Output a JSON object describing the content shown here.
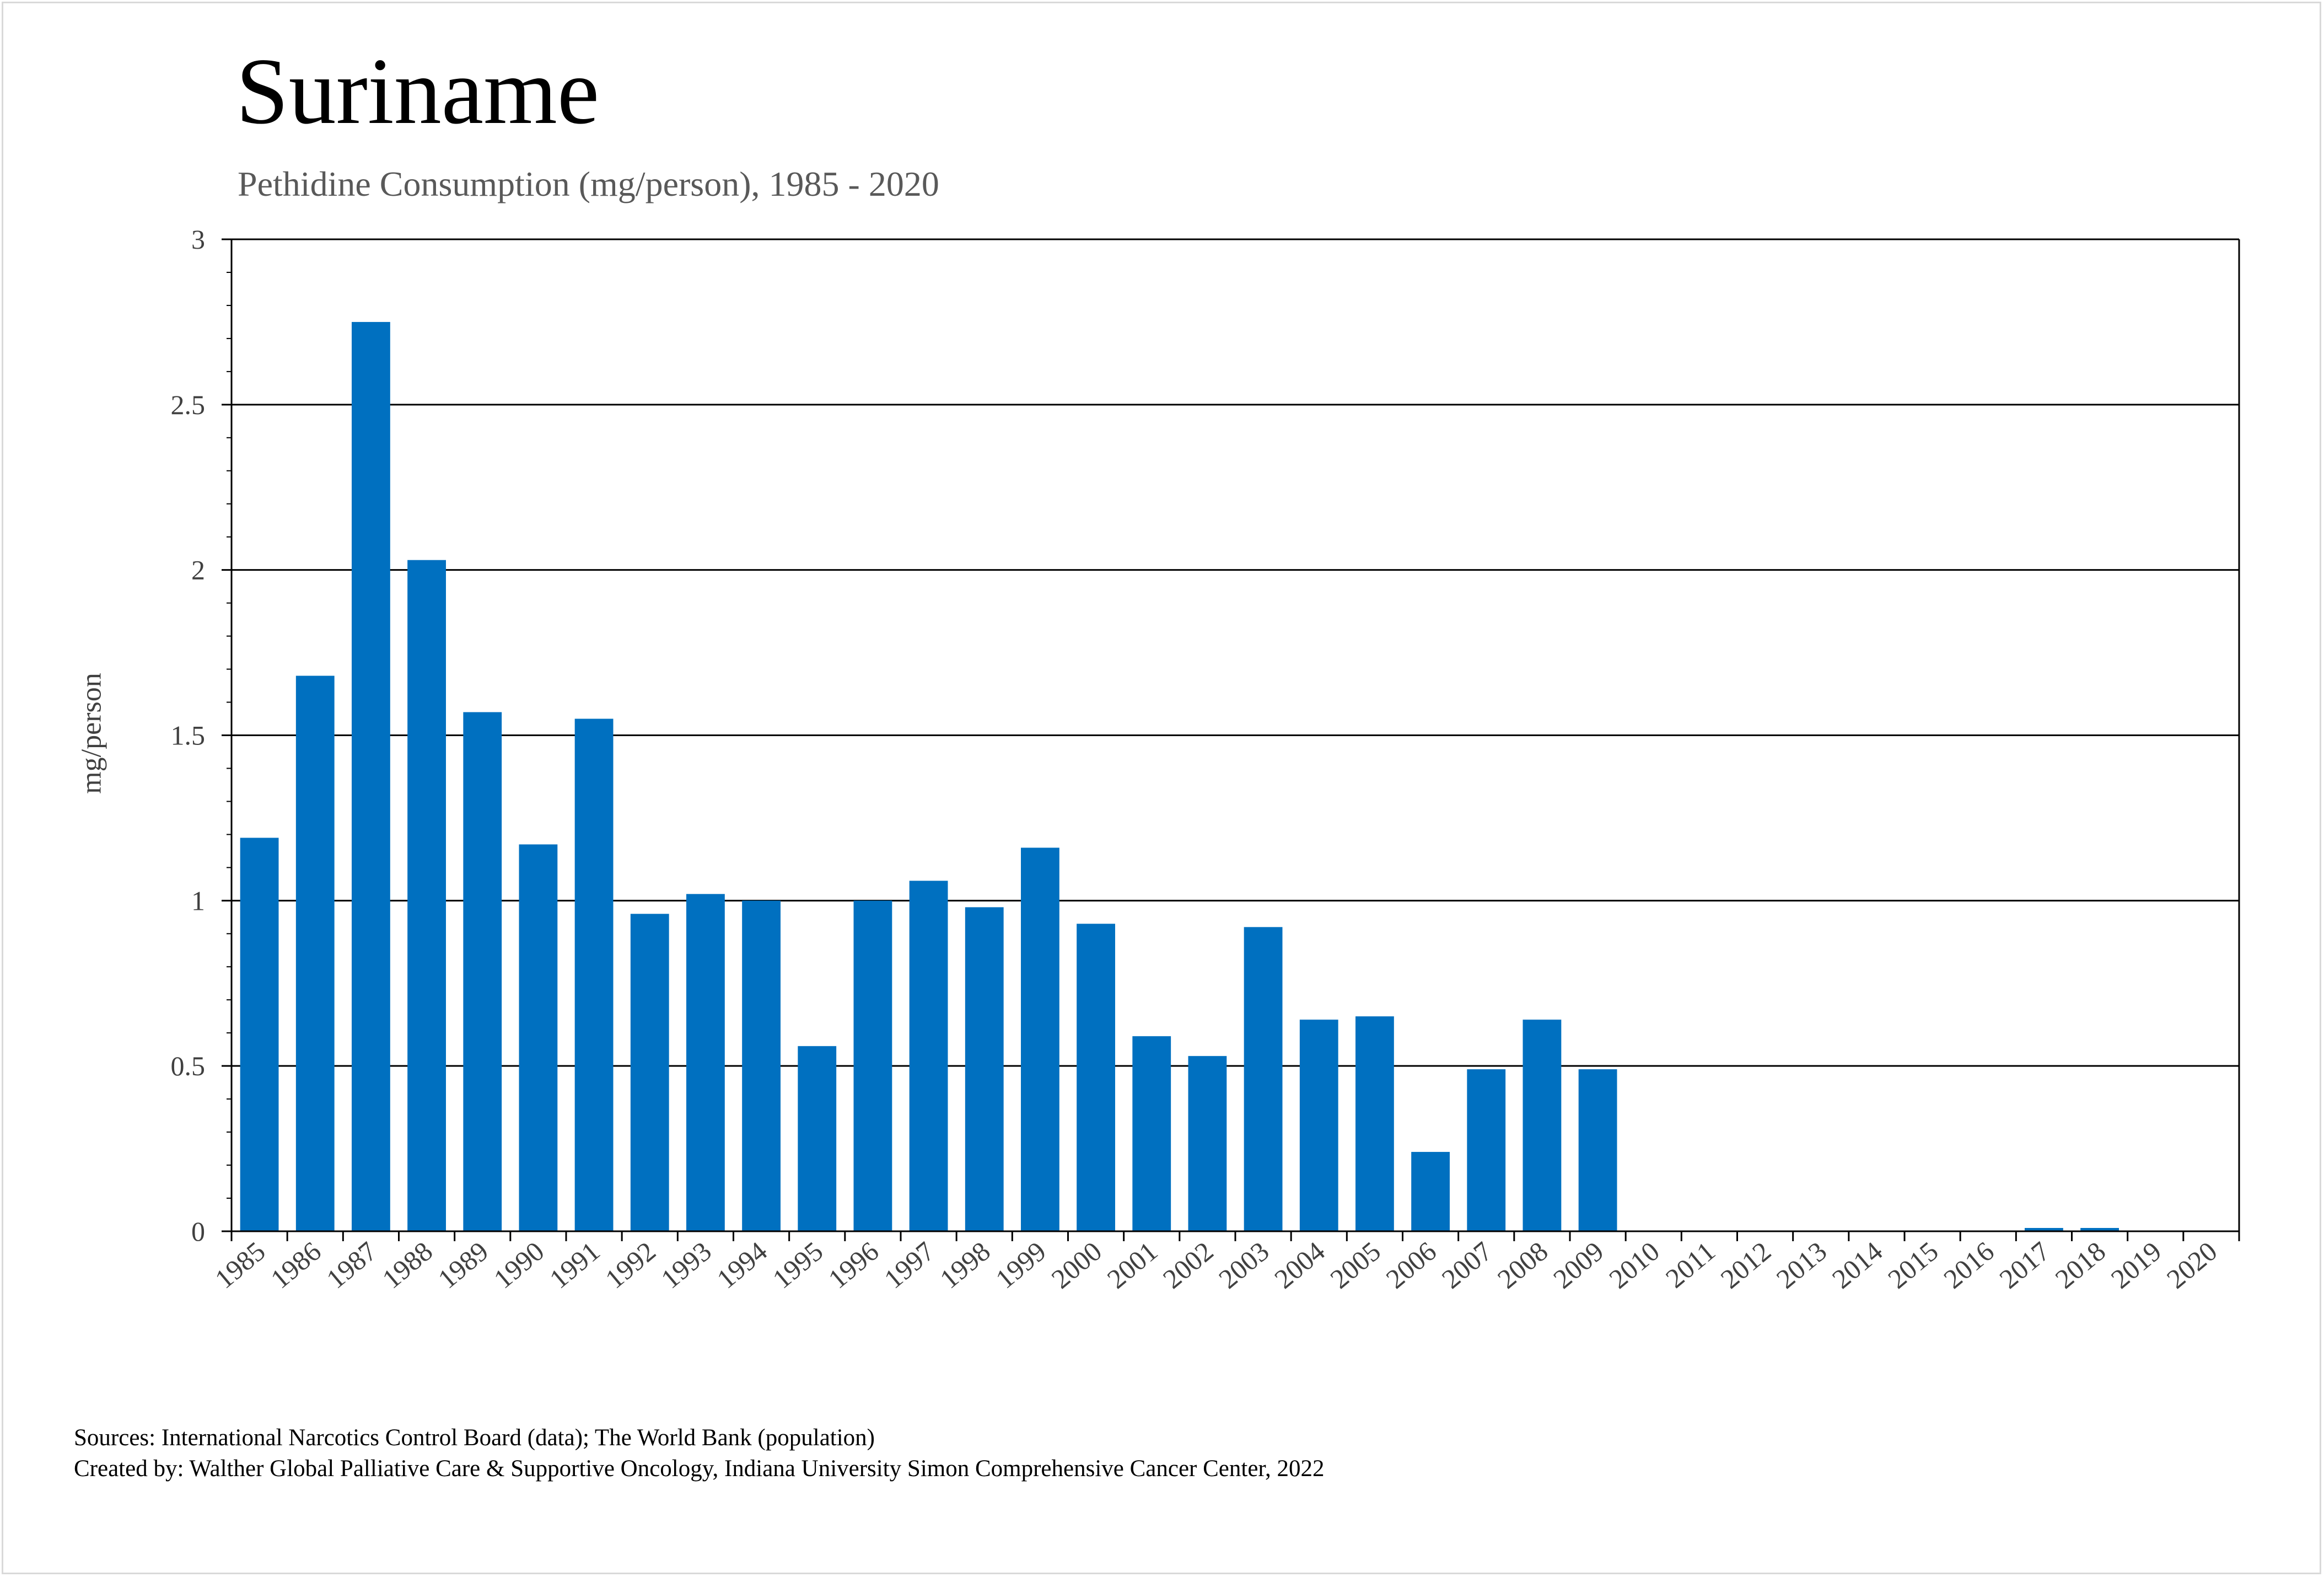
{
  "chart_data": {
    "type": "bar",
    "title": "Suriname",
    "subtitle": "Pethidine Consumption (mg/person), 1985 - 2020",
    "xlabel": "",
    "ylabel": "mg/person",
    "ylim": [
      0,
      3
    ],
    "yticks": [
      "0",
      "0.5",
      "1",
      "1.5",
      "2",
      "2.5",
      "3"
    ],
    "grid": true,
    "legend": "none",
    "bar_color": "#0070C0",
    "categories": [
      "1985",
      "1986",
      "1987",
      "1988",
      "1989",
      "1990",
      "1991",
      "1992",
      "1993",
      "1994",
      "1995",
      "1996",
      "1997",
      "1998",
      "1999",
      "2000",
      "2001",
      "2002",
      "2003",
      "2004",
      "2005",
      "2006",
      "2007",
      "2008",
      "2009",
      "2010",
      "2011",
      "2012",
      "2013",
      "2014",
      "2015",
      "2016",
      "2017",
      "2018",
      "2019",
      "2020"
    ],
    "values": [
      1.19,
      1.68,
      2.75,
      2.03,
      1.57,
      1.17,
      1.55,
      0.96,
      1.02,
      1.0,
      0.56,
      1.0,
      1.06,
      0.98,
      1.16,
      0.93,
      0.59,
      0.53,
      0.92,
      0.64,
      0.65,
      0.24,
      0.49,
      0.64,
      0.49,
      0,
      0,
      0,
      0,
      0,
      0,
      0,
      0.01,
      0.01,
      0,
      0
    ]
  },
  "footer": {
    "sources": "Sources: International Narcotics Control Board (data); The World Bank (population)",
    "created_by": "Created by: Walther Global Palliative Care & Supportive Oncology, Indiana University Simon Comprehensive Cancer Center, 2022"
  }
}
